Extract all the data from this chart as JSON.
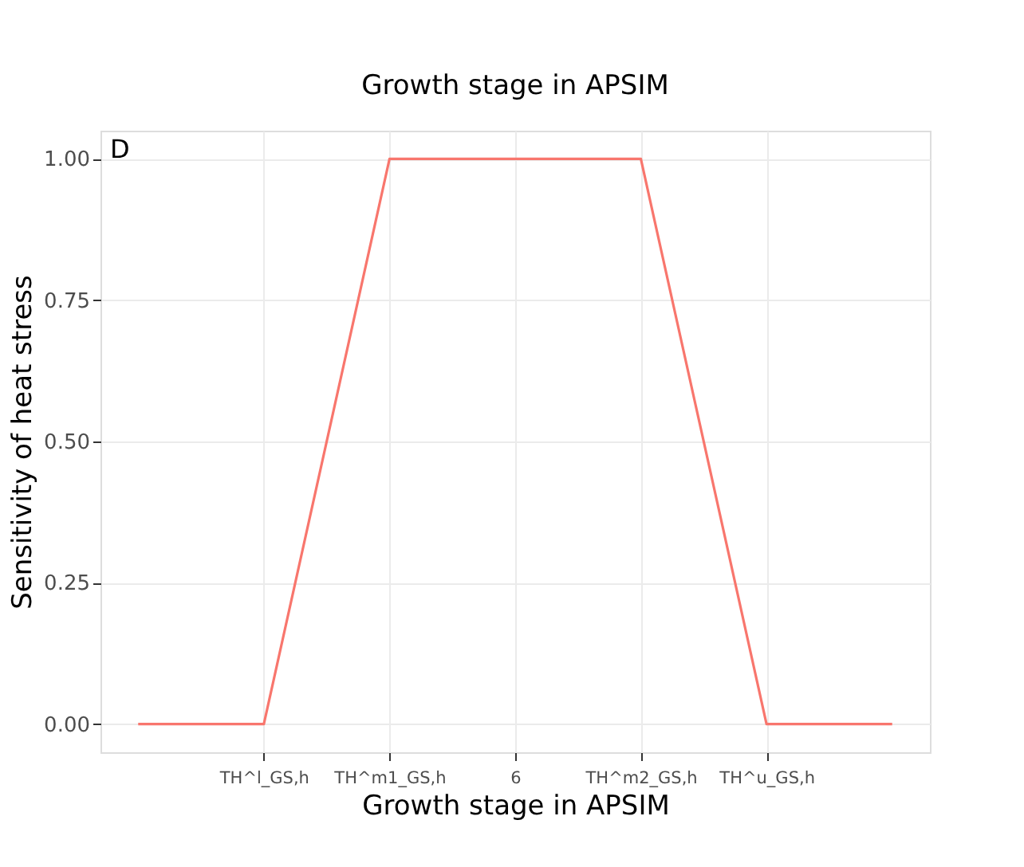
{
  "chart_data": {
    "type": "line",
    "xlabel": "Growth stage in APSIM",
    "ylabel": "Sensitivity of heat stress",
    "categories": [
      null,
      "TH^l_GS,h",
      "TH^m1_GS,h",
      "6",
      "TH^m2_GS,h",
      "TH^u_GS,h",
      null
    ],
    "series": [
      {
        "color": "#f8766d",
        "values": [
          0,
          0,
          1,
          1,
          1,
          0,
          0
        ]
      }
    ],
    "ylim": [
      -0.05,
      1.05
    ],
    "yticks": [
      {
        "value": 0,
        "label": "0.00"
      },
      {
        "value": 0.25,
        "label": "0.25"
      },
      {
        "value": 0.5,
        "label": "0.50"
      },
      {
        "value": 0.75,
        "label": "0.75"
      },
      {
        "value": 1,
        "label": "1.00"
      }
    ],
    "grid": true,
    "annotations": [
      "D",
      "Growth stage in APSIM"
    ]
  }
}
